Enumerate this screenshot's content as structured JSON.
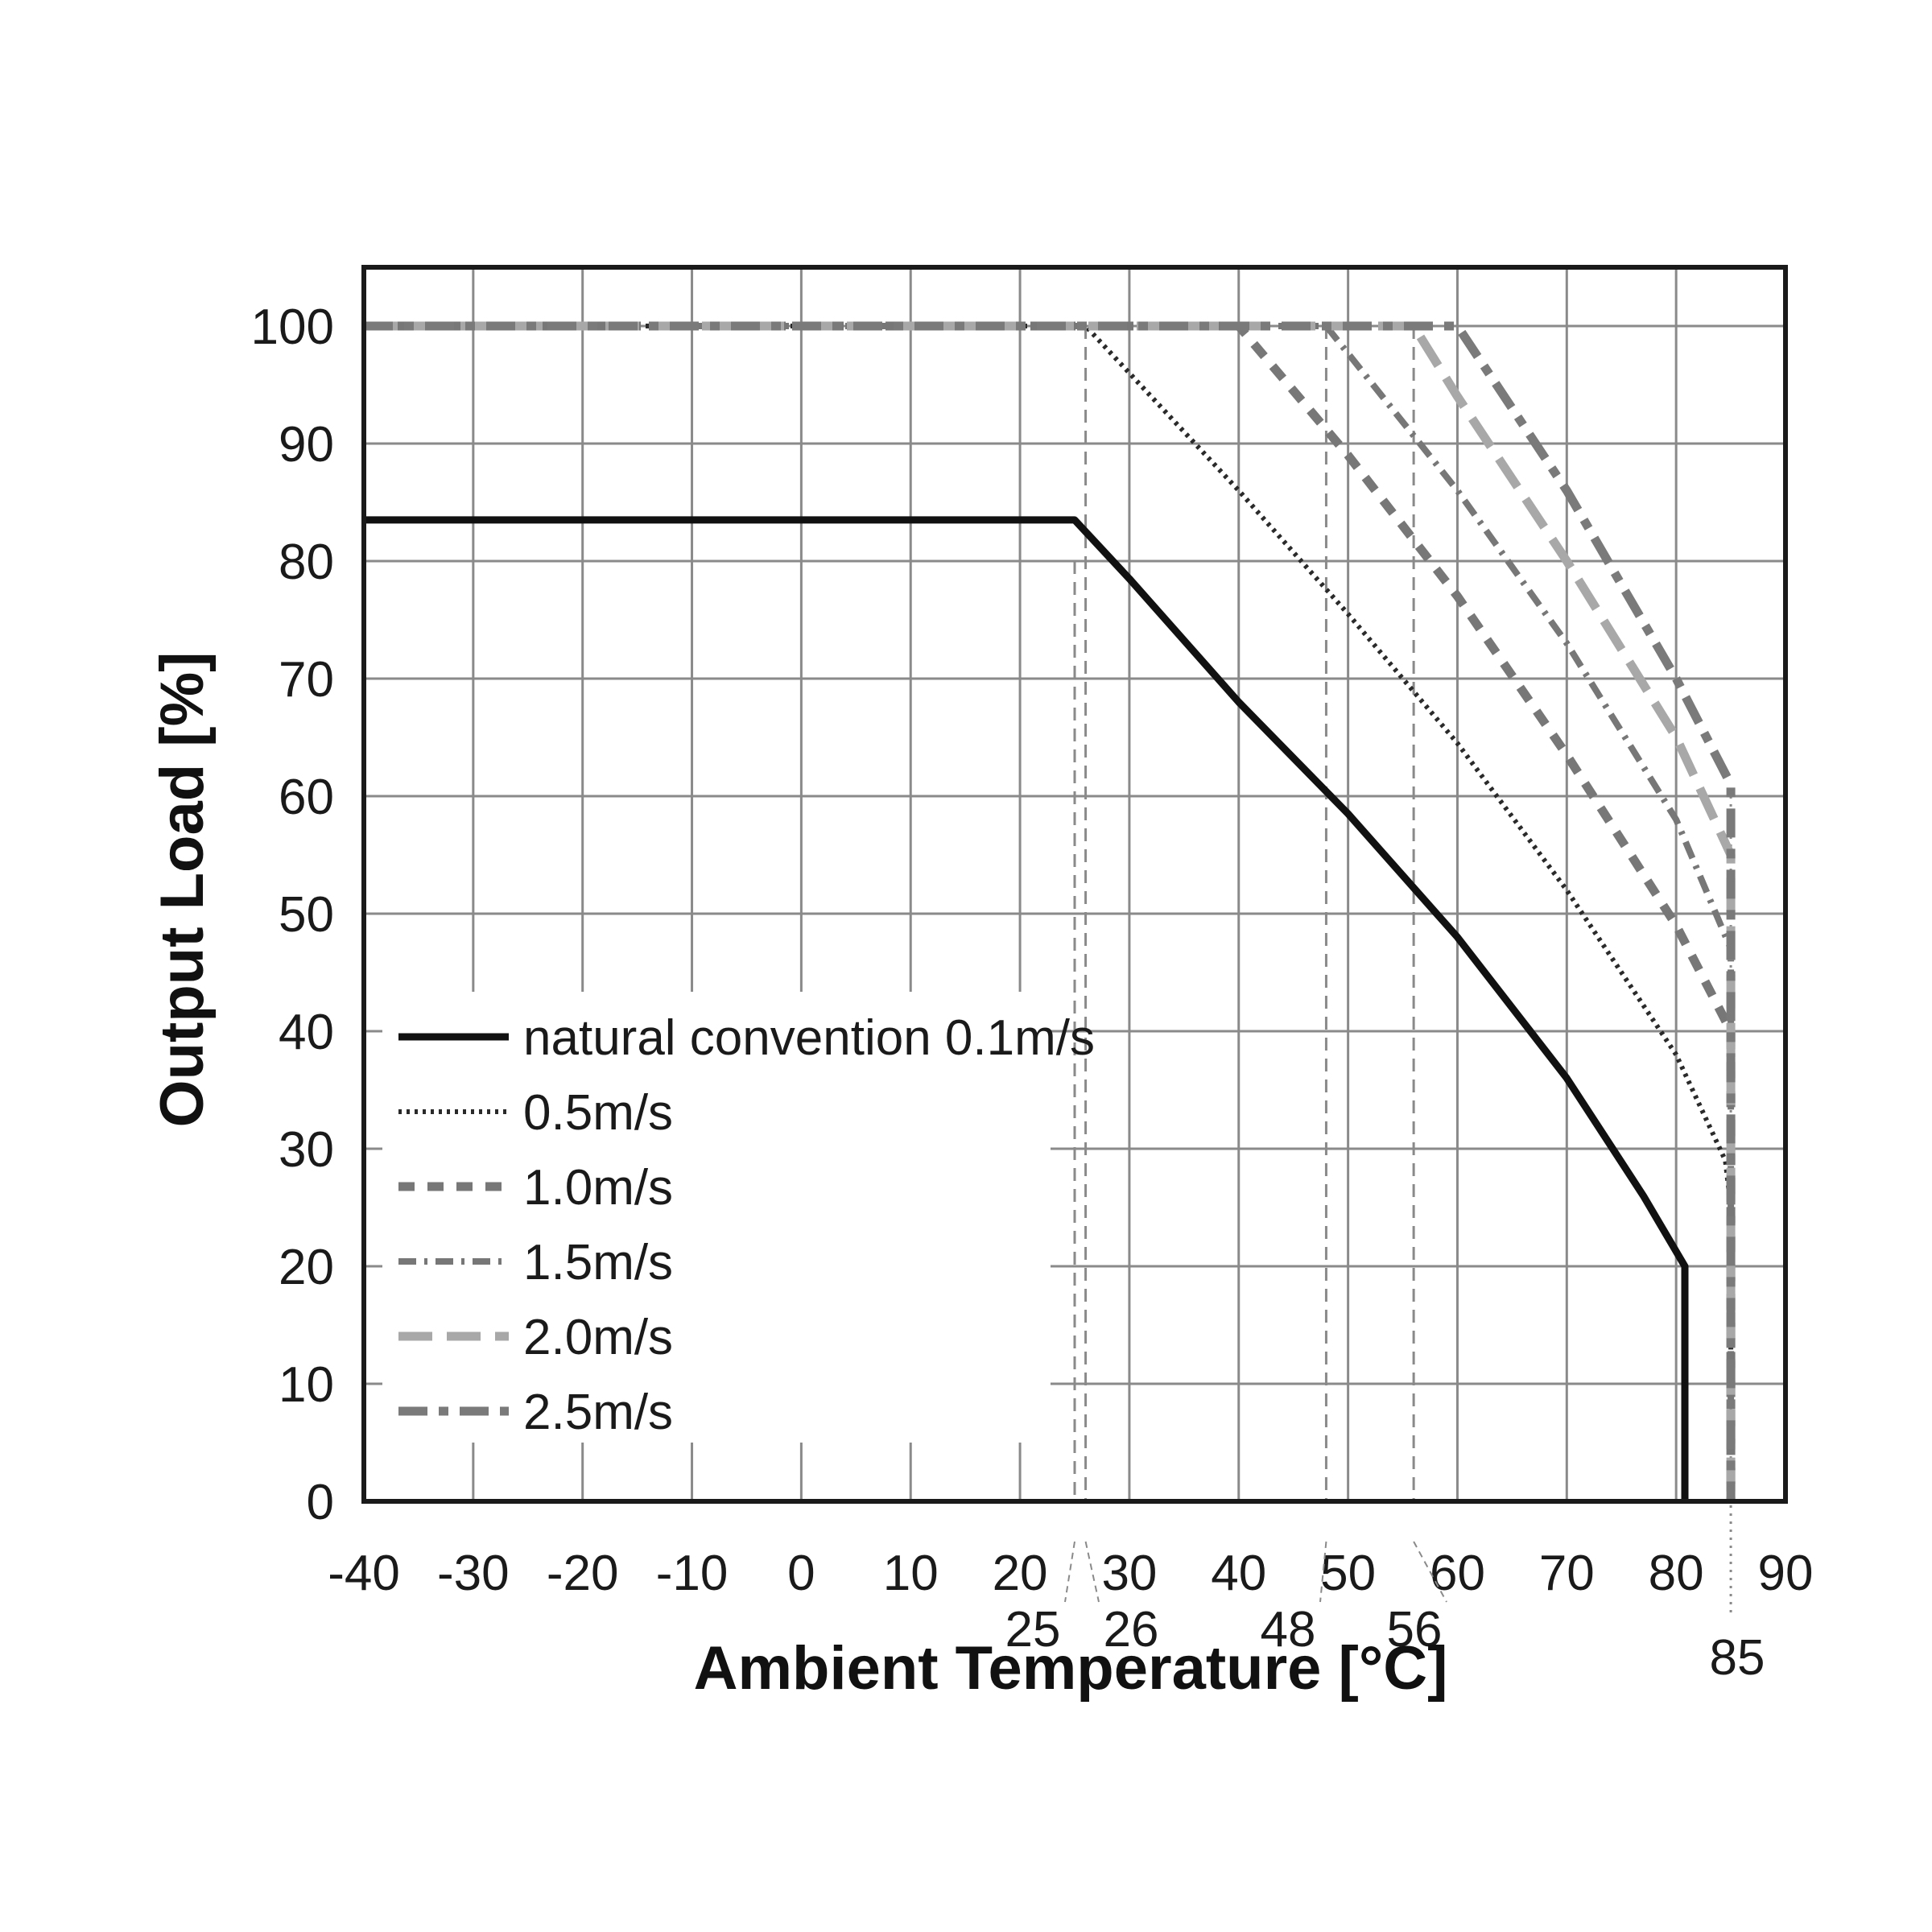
{
  "chart_data": {
    "type": "line",
    "xlabel": "Ambient Temperature [°C]",
    "ylabel": "Output Load [%]",
    "xlim": [
      -40,
      90
    ],
    "ylim": [
      0,
      105
    ],
    "x_ticks": [
      -40,
      -30,
      -20,
      -10,
      0,
      10,
      20,
      30,
      40,
      50,
      60,
      70,
      80,
      90
    ],
    "y_ticks": [
      0,
      10,
      20,
      30,
      40,
      50,
      60,
      70,
      80,
      90,
      100
    ],
    "grid": true,
    "legend_position": "bottom-left",
    "marker_lines": [
      {
        "x": 25,
        "label": "25"
      },
      {
        "x": 26,
        "label": "26"
      },
      {
        "x": 48,
        "label": "48"
      },
      {
        "x": 56,
        "label": "56"
      },
      {
        "x": 85,
        "label": "85"
      }
    ],
    "series": [
      {
        "name": "natural convention 0.1m/s",
        "style": "solid",
        "x": [
          -40,
          25,
          30,
          40,
          50,
          60,
          70,
          77,
          80.8,
          80.8
        ],
        "y": [
          83.5,
          83.5,
          78.5,
          68,
          58.5,
          48,
          36,
          26,
          20,
          0
        ]
      },
      {
        "name": "0.5m/s",
        "style": "dotted",
        "x": [
          -40,
          26,
          30,
          40,
          50,
          60,
          70,
          80,
          84.5,
          85,
          85
        ],
        "y": [
          100,
          100,
          96,
          86,
          75.5,
          64.5,
          52,
          38,
          29,
          25,
          0
        ]
      },
      {
        "name": "1.0m/s",
        "style": "dashed",
        "x": [
          -40,
          40,
          50,
          60,
          70,
          80,
          85,
          85
        ],
        "y": [
          100,
          100,
          89,
          77,
          63.5,
          49,
          40,
          0
        ]
      },
      {
        "name": "1.5m/s",
        "style": "dashdot",
        "x": [
          -40,
          48,
          60,
          70,
          80,
          85,
          85
        ],
        "y": [
          100,
          100,
          86,
          73,
          58,
          47,
          0
        ]
      },
      {
        "name": "2.0m/s",
        "style": "longdash-light",
        "x": [
          -40,
          56,
          60,
          70,
          80,
          85,
          85
        ],
        "y": [
          100,
          100,
          94,
          80,
          65,
          55,
          0
        ]
      },
      {
        "name": "2.5m/s",
        "style": "longdash-dark",
        "x": [
          -40,
          60,
          70,
          80,
          85,
          85
        ],
        "y": [
          100,
          100,
          86,
          70,
          61,
          0
        ]
      }
    ]
  }
}
